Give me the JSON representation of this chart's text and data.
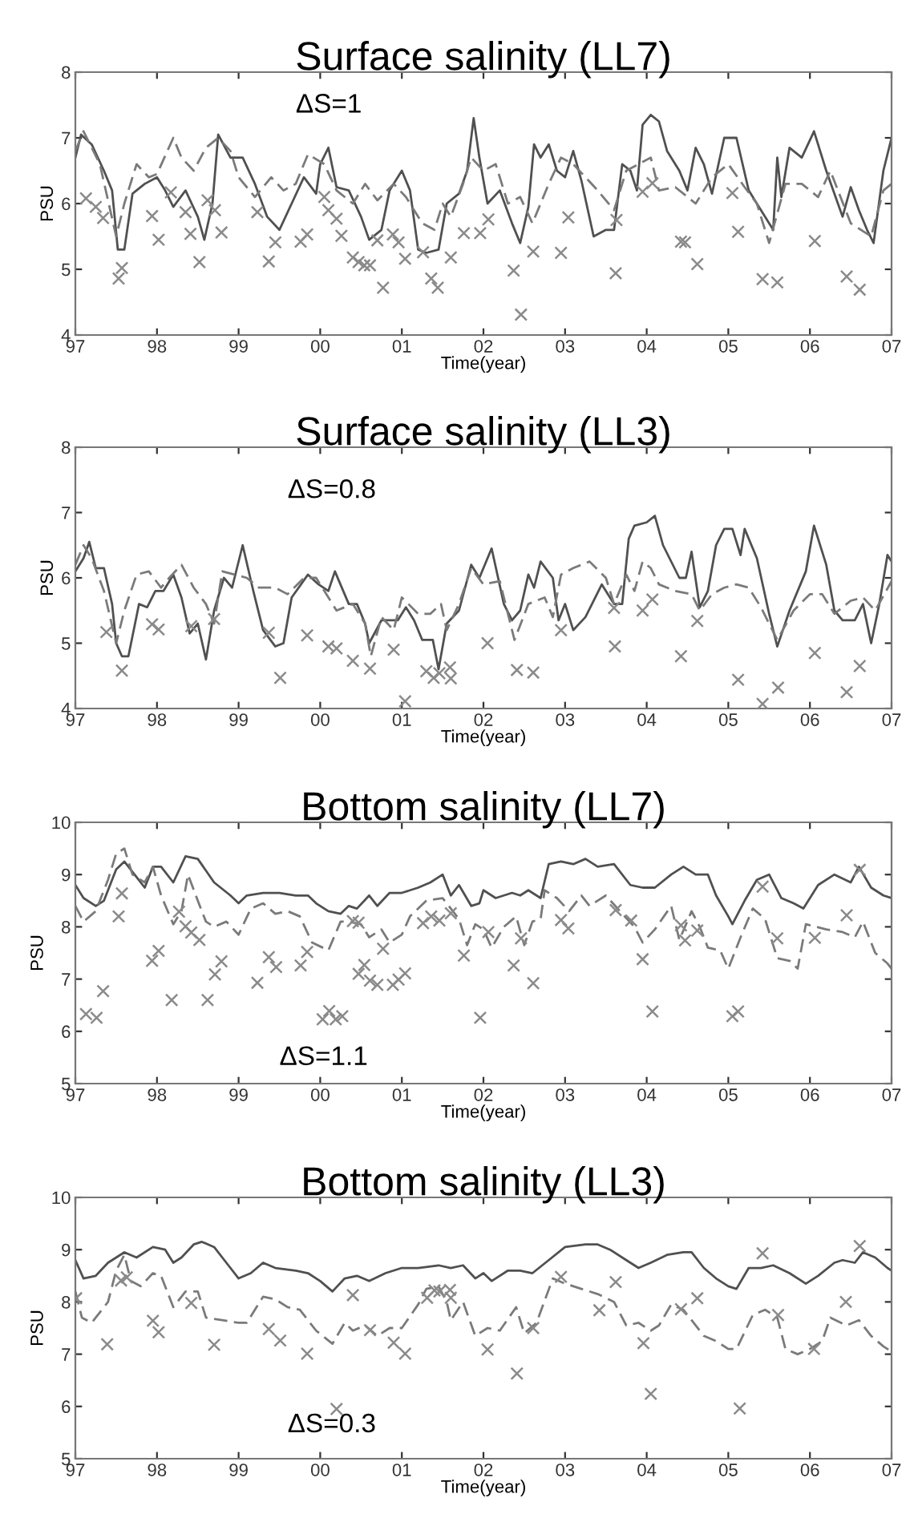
{
  "chart_data": [
    {
      "type": "line",
      "title": "Surface salinity (LL7)",
      "xlabel": "Time(year)",
      "ylabel": "PSU",
      "annotations": [
        "ΔS=1"
      ],
      "xlim": [
        1997,
        2007
      ],
      "ylim": [
        4,
        8
      ],
      "yticks": [
        4,
        5,
        6,
        7,
        8
      ],
      "xticks": [
        {
          "value": 1997,
          "label": "97"
        },
        {
          "value": 1998,
          "label": "98"
        },
        {
          "value": 1999,
          "label": "99"
        },
        {
          "value": 2000,
          "label": "00"
        },
        {
          "value": 2001,
          "label": "01"
        },
        {
          "value": 2002,
          "label": "02"
        },
        {
          "value": 2003,
          "label": "03"
        },
        {
          "value": 2004,
          "label": "04"
        },
        {
          "value": 2005,
          "label": "05"
        },
        {
          "value": 2006,
          "label": "06"
        },
        {
          "value": 2007,
          "label": "07"
        }
      ],
      "grid": false,
      "legend": false,
      "series": [
        {
          "type": "line",
          "line_style": "solid",
          "color": "#505050",
          "x": [
            1997.0,
            1997.07,
            1997.2,
            1997.35,
            1997.45,
            1997.52,
            1997.6,
            1997.7,
            1997.85,
            1998.0,
            1998.1,
            1998.2,
            1998.35,
            1998.5,
            1998.58,
            1998.68,
            1998.75,
            1998.9,
            1999.05,
            1999.2,
            1999.35,
            1999.5,
            1999.65,
            1999.8,
            1999.95,
            2000.0,
            2000.1,
            2000.2,
            2000.35,
            2000.5,
            2000.6,
            2000.75,
            2000.85,
            2001.0,
            2001.1,
            2001.2,
            2001.3,
            2001.45,
            2001.55,
            2001.7,
            2001.8,
            2001.88,
            2001.95,
            2002.05,
            2002.2,
            2002.35,
            2002.45,
            2002.55,
            2002.62,
            2002.7,
            2002.8,
            2002.9,
            2003.0,
            2003.1,
            2003.2,
            2003.35,
            2003.5,
            2003.6,
            2003.7,
            2003.8,
            2003.88,
            2003.95,
            2004.05,
            2004.15,
            2004.25,
            2004.4,
            2004.5,
            2004.6,
            2004.7,
            2004.8,
            2004.95,
            2005.1,
            2005.25,
            2005.35,
            2005.55,
            2005.6,
            2005.65,
            2005.75,
            2005.9,
            2006.05,
            2006.2,
            2006.4,
            2006.5,
            2006.6,
            2006.7,
            2006.78,
            2006.9,
            2007.0
          ],
          "values": [
            6.7,
            7.05,
            6.9,
            6.5,
            6.2,
            5.3,
            5.3,
            6.15,
            6.3,
            6.4,
            6.2,
            5.95,
            6.2,
            5.8,
            5.45,
            6.0,
            7.05,
            6.7,
            6.7,
            6.3,
            5.8,
            5.6,
            6.0,
            6.4,
            6.15,
            6.6,
            6.85,
            6.25,
            6.2,
            5.8,
            5.45,
            5.6,
            6.2,
            6.5,
            6.2,
            5.3,
            5.25,
            5.3,
            6.0,
            6.15,
            6.5,
            7.3,
            6.7,
            6.0,
            6.2,
            5.7,
            5.4,
            5.95,
            6.9,
            6.7,
            6.9,
            6.5,
            6.4,
            6.8,
            6.35,
            5.5,
            5.6,
            5.6,
            6.6,
            6.5,
            6.2,
            7.2,
            7.35,
            7.25,
            6.8,
            6.5,
            6.2,
            6.85,
            6.6,
            6.15,
            7.0,
            7.0,
            6.2,
            6.0,
            5.6,
            6.7,
            6.1,
            6.85,
            6.7,
            7.1,
            6.5,
            5.8,
            6.25,
            5.9,
            5.6,
            5.4,
            6.5,
            7.0
          ]
        },
        {
          "type": "line",
          "line_style": "dashed",
          "color": "#7a7a7a",
          "x": [
            1997.0,
            1997.1,
            1997.3,
            1997.5,
            1997.6,
            1997.75,
            1997.9,
            1998.0,
            1998.2,
            1998.3,
            1998.45,
            1998.6,
            1998.75,
            1998.9,
            1999.0,
            1999.2,
            1999.4,
            1999.55,
            1999.7,
            1999.85,
            2000.05,
            2000.2,
            2000.4,
            2000.55,
            2000.7,
            2000.9,
            2001.05,
            2001.25,
            2001.4,
            2001.5,
            2001.6,
            2001.75,
            2001.85,
            2002.0,
            2002.15,
            2002.3,
            2002.45,
            2002.6,
            2002.8,
            2002.95,
            2003.1,
            2003.25,
            2003.4,
            2003.6,
            2003.75,
            2003.9,
            2004.05,
            2004.15,
            2004.35,
            2004.6,
            2004.8,
            2005.0,
            2005.2,
            2005.35,
            2005.5,
            2005.7,
            2005.9,
            2006.1,
            2006.25,
            2006.5,
            2006.75,
            2006.9,
            2007.0
          ],
          "values": [
            6.8,
            7.1,
            6.6,
            5.5,
            6.0,
            6.6,
            6.4,
            6.45,
            7.0,
            6.7,
            6.5,
            6.85,
            7.0,
            6.8,
            6.4,
            6.1,
            6.4,
            6.2,
            6.3,
            6.75,
            6.6,
            6.2,
            6.0,
            6.3,
            6.05,
            6.3,
            6.1,
            5.7,
            5.6,
            6.0,
            5.8,
            6.3,
            6.7,
            6.5,
            6.6,
            6.0,
            6.1,
            5.7,
            6.3,
            6.7,
            6.6,
            6.4,
            6.2,
            5.9,
            6.5,
            6.6,
            6.7,
            6.2,
            6.25,
            6.0,
            6.4,
            6.6,
            6.25,
            6.0,
            5.4,
            6.3,
            6.3,
            6.1,
            6.5,
            5.7,
            5.5,
            6.2,
            6.3
          ]
        },
        {
          "type": "scatter",
          "marker": "cross",
          "color": "#8a8a8a",
          "x": [
            1997.13,
            1997.25,
            1997.34,
            1997.53,
            1997.57,
            1997.94,
            1998.02,
            1998.17,
            1998.35,
            1998.41,
            1998.52,
            1998.62,
            1998.71,
            1998.79,
            1999.23,
            1999.37,
            1999.45,
            1999.76,
            1999.84,
            2000.05,
            2000.1,
            2000.2,
            2000.26,
            2000.4,
            2000.47,
            2000.54,
            2000.61,
            2000.7,
            2000.77,
            2000.89,
            2000.96,
            2001.04,
            2001.26,
            2001.36,
            2001.44,
            2001.6,
            2001.76,
            2001.96,
            2002.06,
            2002.37,
            2002.46,
            2002.61,
            2002.95,
            2003.04,
            2003.62,
            2003.63,
            2003.95,
            2004.07,
            2004.42,
            2004.47,
            2004.62,
            2005.05,
            2005.12,
            2005.42,
            2005.6,
            2006.06,
            2006.45,
            2006.61
          ],
          "values": [
            6.08,
            5.95,
            5.78,
            4.86,
            5.02,
            5.81,
            5.45,
            6.17,
            5.87,
            5.54,
            5.11,
            6.05,
            5.9,
            5.56,
            5.87,
            5.12,
            5.41,
            5.42,
            5.53,
            6.1,
            5.9,
            5.77,
            5.51,
            5.18,
            5.11,
            5.06,
            5.06,
            5.44,
            4.72,
            5.53,
            5.41,
            5.16,
            5.26,
            4.86,
            4.72,
            5.18,
            5.55,
            5.55,
            5.76,
            4.98,
            4.31,
            5.27,
            5.25,
            5.79,
            4.94,
            5.75,
            6.18,
            6.31,
            5.42,
            5.41,
            5.08,
            6.16,
            5.57,
            4.85,
            4.8,
            5.43,
            4.89,
            4.69
          ]
        }
      ]
    },
    {
      "type": "line",
      "title": "Surface salinity (LL3)",
      "xlabel": "Time(year)",
      "ylabel": "PSU",
      "annotations": [
        "ΔS=0.8"
      ],
      "xlim": [
        1997,
        2007
      ],
      "ylim": [
        4,
        8
      ],
      "yticks": [
        4,
        5,
        6,
        7,
        8
      ],
      "xticks": [
        {
          "value": 1997,
          "label": "97"
        },
        {
          "value": 1998,
          "label": "98"
        },
        {
          "value": 1999,
          "label": "99"
        },
        {
          "value": 2000,
          "label": "00"
        },
        {
          "value": 2001,
          "label": "01"
        },
        {
          "value": 2002,
          "label": "02"
        },
        {
          "value": 2003,
          "label": "03"
        },
        {
          "value": 2004,
          "label": "04"
        },
        {
          "value": 2005,
          "label": "05"
        },
        {
          "value": 2006,
          "label": "06"
        },
        {
          "value": 2007,
          "label": "07"
        }
      ],
      "grid": false,
      "legend": false,
      "series": [
        {
          "type": "line",
          "line_style": "solid",
          "color": "#505050",
          "x": [
            1997.0,
            1997.1,
            1997.17,
            1997.25,
            1997.35,
            1997.45,
            1997.5,
            1997.57,
            1997.65,
            1997.78,
            1997.88,
            1997.98,
            1998.08,
            1998.2,
            1998.3,
            1998.4,
            1998.5,
            1998.6,
            1998.7,
            1998.82,
            1998.92,
            1999.05,
            1999.18,
            1999.3,
            1999.45,
            1999.55,
            1999.65,
            1999.85,
            1999.98,
            2000.1,
            2000.18,
            2000.35,
            2000.45,
            2000.55,
            2000.6,
            2000.75,
            2000.95,
            2001.05,
            2001.15,
            2001.25,
            2001.38,
            2001.45,
            2001.55,
            2001.7,
            2001.85,
            2001.95,
            2002.1,
            2002.25,
            2002.35,
            2002.45,
            2002.55,
            2002.62,
            2002.7,
            2002.85,
            2002.92,
            2003.0,
            2003.1,
            2003.25,
            2003.45,
            2003.6,
            2003.7,
            2003.78,
            2003.85,
            2004.0,
            2004.1,
            2004.2,
            2004.4,
            2004.48,
            2004.55,
            2004.65,
            2004.75,
            2004.85,
            2004.95,
            2005.05,
            2005.15,
            2005.2,
            2005.35,
            2005.5,
            2005.6,
            2005.75,
            2005.95,
            2006.05,
            2006.2,
            2006.3,
            2006.4,
            2006.55,
            2006.65,
            2006.75,
            2006.85,
            2006.95,
            2007.0
          ],
          "values": [
            6.1,
            6.3,
            6.55,
            6.15,
            6.15,
            5.6,
            5.0,
            4.8,
            4.8,
            5.6,
            5.55,
            5.8,
            5.8,
            6.05,
            5.7,
            5.15,
            5.3,
            4.75,
            5.5,
            6.0,
            5.85,
            6.5,
            5.8,
            5.2,
            4.95,
            5.0,
            5.7,
            6.05,
            5.9,
            5.8,
            6.1,
            5.6,
            5.6,
            5.3,
            5.0,
            5.35,
            5.35,
            5.55,
            5.35,
            5.05,
            5.05,
            4.6,
            5.3,
            5.5,
            6.2,
            6.0,
            6.45,
            5.6,
            5.35,
            5.5,
            6.05,
            5.85,
            6.25,
            6.0,
            5.35,
            5.6,
            5.2,
            5.4,
            5.9,
            5.6,
            5.6,
            6.6,
            6.8,
            6.85,
            6.95,
            6.5,
            6.0,
            6.0,
            6.4,
            5.55,
            5.8,
            6.5,
            6.75,
            6.75,
            6.35,
            6.75,
            6.3,
            5.45,
            4.95,
            5.5,
            6.1,
            6.8,
            6.2,
            5.5,
            5.35,
            5.35,
            5.6,
            5.0,
            5.6,
            6.35,
            6.25
          ]
        },
        {
          "type": "line",
          "line_style": "dashed",
          "color": "#7a7a7a",
          "x": [
            1997.0,
            1997.1,
            1997.2,
            1997.35,
            1997.5,
            1997.6,
            1997.75,
            1997.9,
            1998.05,
            1998.15,
            1998.3,
            1998.45,
            1998.6,
            1998.7,
            1998.8,
            1998.95,
            1999.1,
            1999.25,
            1999.45,
            1999.6,
            1999.8,
            1999.95,
            2000.05,
            2000.2,
            2000.4,
            2000.55,
            2000.62,
            2000.75,
            2000.9,
            2001.0,
            2001.2,
            2001.35,
            2001.48,
            2001.55,
            2001.7,
            2001.85,
            2002.0,
            2002.2,
            2002.38,
            2002.55,
            2002.75,
            2002.85,
            2002.95,
            2003.1,
            2003.3,
            2003.5,
            2003.6,
            2003.75,
            2003.85,
            2003.95,
            2004.05,
            2004.15,
            2004.35,
            2004.55,
            2004.65,
            2004.8,
            2004.95,
            2005.1,
            2005.25,
            2005.4,
            2005.6,
            2005.8,
            2006.0,
            2006.15,
            2006.3,
            2006.5,
            2006.65,
            2006.8,
            2007.0
          ],
          "values": [
            6.2,
            6.5,
            6.3,
            5.8,
            5.0,
            5.5,
            6.05,
            6.1,
            5.85,
            6.0,
            6.2,
            5.85,
            5.6,
            5.3,
            6.1,
            6.05,
            6.0,
            5.85,
            5.85,
            5.75,
            6.0,
            6.0,
            5.8,
            5.5,
            5.6,
            5.3,
            4.8,
            5.4,
            5.2,
            5.7,
            5.45,
            5.45,
            5.6,
            5.2,
            5.6,
            6.15,
            5.9,
            5.95,
            5.05,
            5.6,
            5.7,
            5.4,
            6.05,
            6.15,
            6.25,
            6.0,
            5.6,
            6.05,
            5.8,
            6.25,
            6.15,
            5.9,
            5.8,
            5.75,
            5.5,
            5.75,
            5.85,
            5.9,
            5.85,
            5.55,
            5.05,
            5.5,
            5.75,
            5.75,
            5.45,
            5.65,
            5.7,
            5.5,
            5.95
          ]
        },
        {
          "type": "scatter",
          "marker": "cross",
          "color": "#8a8a8a",
          "x": [
            1997.38,
            1997.57,
            1997.94,
            1998.02,
            1998.42,
            1998.7,
            1999.37,
            1999.51,
            1999.84,
            2000.1,
            2000.2,
            2000.4,
            2000.61,
            2000.9,
            2001.04,
            2001.3,
            2001.39,
            2001.46,
            2001.59,
            2001.6,
            2002.05,
            2002.41,
            2002.61,
            2002.95,
            2003.6,
            2003.61,
            2003.95,
            2004.07,
            2004.42,
            2004.62,
            2005.12,
            2005.42,
            2005.61,
            2006.06,
            2006.45,
            2006.61
          ],
          "values": [
            5.17,
            4.58,
            5.29,
            5.21,
            5.26,
            5.37,
            5.16,
            4.47,
            5.12,
            4.95,
            4.92,
            4.73,
            4.61,
            4.9,
            4.11,
            4.57,
            4.47,
            4.54,
            4.63,
            4.46,
            5.0,
            4.59,
            4.55,
            5.2,
            5.54,
            4.95,
            5.5,
            5.67,
            4.8,
            5.34,
            4.44,
            4.07,
            4.32,
            4.85,
            4.25,
            4.65
          ]
        }
      ]
    },
    {
      "type": "line",
      "title": "Bottom salinity (LL7)",
      "xlabel": "Time(year)",
      "ylabel": "PSU",
      "annotations": [
        "ΔS=1.1"
      ],
      "xlim": [
        1997,
        2007
      ],
      "ylim": [
        5,
        10
      ],
      "yticks": [
        5,
        6,
        7,
        8,
        9,
        10
      ],
      "xticks": [
        {
          "value": 1997,
          "label": "97"
        },
        {
          "value": 1998,
          "label": "98"
        },
        {
          "value": 1999,
          "label": "99"
        },
        {
          "value": 2000,
          "label": "00"
        },
        {
          "value": 2001,
          "label": "01"
        },
        {
          "value": 2002,
          "label": "02"
        },
        {
          "value": 2003,
          "label": "03"
        },
        {
          "value": 2004,
          "label": "04"
        },
        {
          "value": 2005,
          "label": "05"
        },
        {
          "value": 2006,
          "label": "06"
        },
        {
          "value": 2007,
          "label": "07"
        }
      ],
      "grid": false,
      "legend": false,
      "series": [
        {
          "type": "line",
          "line_style": "solid",
          "color": "#505050",
          "x": [
            1997.0,
            1997.1,
            1997.25,
            1997.35,
            1997.5,
            1997.6,
            1997.75,
            1997.85,
            1997.95,
            1998.05,
            1998.2,
            1998.35,
            1998.5,
            1998.7,
            1998.9,
            1999.0,
            1999.1,
            1999.3,
            1999.5,
            1999.7,
            1999.85,
            1999.95,
            2000.1,
            2000.25,
            2000.35,
            2000.45,
            2000.6,
            2000.7,
            2000.85,
            2001.0,
            2001.2,
            2001.35,
            2001.5,
            2001.6,
            2001.7,
            2001.85,
            2001.95,
            2002.0,
            2002.15,
            2002.35,
            2002.45,
            2002.55,
            2002.7,
            2002.8,
            2002.95,
            2003.1,
            2003.25,
            2003.4,
            2003.6,
            2003.8,
            2003.95,
            2004.1,
            2004.3,
            2004.45,
            2004.6,
            2004.75,
            2004.85,
            2005.0,
            2005.05,
            2005.2,
            2005.35,
            2005.5,
            2005.65,
            2005.8,
            2005.92,
            2006.1,
            2006.3,
            2006.5,
            2006.6,
            2006.75,
            2006.9,
            2007.0
          ],
          "values": [
            8.8,
            8.55,
            8.4,
            8.5,
            9.1,
            9.25,
            8.95,
            8.75,
            9.15,
            9.15,
            8.85,
            9.35,
            9.3,
            8.85,
            8.6,
            8.45,
            8.6,
            8.65,
            8.65,
            8.6,
            8.6,
            8.45,
            8.3,
            8.25,
            8.4,
            8.35,
            8.6,
            8.4,
            8.65,
            8.65,
            8.75,
            8.85,
            9.0,
            8.6,
            8.8,
            8.4,
            8.45,
            8.7,
            8.55,
            8.65,
            8.6,
            8.7,
            8.55,
            9.2,
            9.25,
            9.2,
            9.3,
            9.15,
            9.2,
            8.8,
            8.75,
            8.75,
            9.0,
            9.15,
            9.0,
            9.0,
            8.6,
            8.2,
            8.05,
            8.5,
            8.9,
            9.0,
            8.55,
            8.45,
            8.35,
            8.8,
            9.0,
            8.85,
            9.15,
            8.75,
            8.6,
            8.55
          ]
        },
        {
          "type": "line",
          "line_style": "dashed",
          "color": "#7a7a7a",
          "x": [
            1997.0,
            1997.1,
            1997.25,
            1997.4,
            1997.5,
            1997.6,
            1997.7,
            1997.85,
            1997.95,
            1998.05,
            1998.2,
            1998.3,
            1998.38,
            1998.5,
            1998.6,
            1998.7,
            1998.85,
            1999.0,
            1999.15,
            1999.3,
            1999.45,
            1999.6,
            1999.75,
            1999.9,
            2000.1,
            2000.25,
            2000.35,
            2000.5,
            2000.6,
            2000.75,
            2000.85,
            2001.0,
            2001.1,
            2001.3,
            2001.5,
            2001.6,
            2001.7,
            2001.8,
            2001.9,
            2002.0,
            2002.1,
            2002.25,
            2002.4,
            2002.5,
            2002.6,
            2002.7,
            2002.75,
            2002.9,
            2003.05,
            2003.2,
            2003.3,
            2003.5,
            2003.7,
            2003.85,
            2003.95,
            2004.1,
            2004.3,
            2004.4,
            2004.55,
            2004.65,
            2004.75,
            2004.9,
            2005.0,
            2005.15,
            2005.3,
            2005.45,
            2005.6,
            2005.75,
            2005.85,
            2005.95,
            2006.2,
            2006.4,
            2006.55,
            2006.65,
            2006.8,
            2006.95,
            2007.0
          ],
          "values": [
            8.4,
            8.1,
            8.3,
            8.9,
            9.4,
            9.5,
            9.0,
            8.85,
            9.15,
            8.6,
            8.05,
            8.3,
            9.0,
            8.5,
            8.1,
            8.0,
            8.1,
            7.85,
            8.35,
            8.45,
            8.25,
            8.3,
            8.2,
            7.7,
            7.55,
            8.1,
            8.1,
            8.05,
            7.8,
            7.95,
            7.7,
            7.85,
            8.2,
            8.5,
            8.55,
            8.35,
            8.15,
            7.65,
            8.05,
            7.95,
            7.6,
            8.0,
            8.2,
            7.65,
            8.1,
            8.15,
            8.7,
            8.55,
            8.3,
            8.6,
            8.4,
            8.6,
            8.25,
            8.0,
            7.7,
            7.95,
            8.4,
            7.75,
            8.3,
            8.0,
            7.6,
            7.55,
            7.2,
            7.8,
            8.35,
            8.15,
            7.4,
            7.35,
            7.2,
            8.05,
            7.95,
            7.9,
            7.8,
            8.1,
            7.5,
            7.3,
            7.2
          ]
        },
        {
          "type": "scatter",
          "marker": "cross",
          "color": "#8a8a8a",
          "x": [
            1997.13,
            1997.26,
            1997.34,
            1997.53,
            1997.57,
            1997.94,
            1998.02,
            1998.18,
            1998.27,
            1998.35,
            1998.42,
            1998.52,
            1998.62,
            1998.71,
            1998.79,
            1999.23,
            1999.37,
            1999.46,
            1999.76,
            1999.84,
            2000.03,
            2000.11,
            2000.19,
            2000.27,
            2000.4,
            2000.47,
            2000.47,
            2000.54,
            2000.61,
            2000.7,
            2000.77,
            2000.89,
            2000.96,
            2001.04,
            2001.26,
            2001.36,
            2001.46,
            2001.6,
            2001.76,
            2001.96,
            2002.06,
            2002.37,
            2002.46,
            2002.61,
            2002.95,
            2003.04,
            2003.62,
            2003.81,
            2003.95,
            2004.07,
            2004.42,
            2004.47,
            2004.62,
            2005.05,
            2005.12,
            2005.42,
            2005.6,
            2006.06,
            2006.45,
            2006.61
          ],
          "values": [
            6.33,
            6.26,
            6.77,
            8.2,
            8.64,
            7.35,
            7.54,
            6.6,
            8.29,
            8.01,
            7.89,
            7.75,
            6.6,
            7.09,
            7.34,
            6.93,
            7.42,
            7.23,
            7.26,
            7.52,
            6.23,
            6.39,
            6.23,
            6.29,
            8.11,
            8.08,
            7.1,
            7.27,
            6.97,
            6.89,
            7.58,
            6.89,
            6.99,
            7.11,
            8.07,
            8.2,
            8.12,
            8.26,
            7.45,
            6.26,
            7.9,
            7.26,
            7.78,
            6.92,
            8.13,
            7.97,
            8.32,
            8.12,
            7.38,
            6.38,
            8.03,
            7.74,
            7.93,
            6.29,
            6.38,
            8.77,
            7.78,
            7.79,
            8.22,
            9.09
          ]
        }
      ]
    },
    {
      "type": "line",
      "title": "Bottom salinity (LL3)",
      "xlabel": "Time(year)",
      "ylabel": "PSU",
      "annotations": [
        "ΔS=0.3"
      ],
      "xlim": [
        1997,
        2007
      ],
      "ylim": [
        5,
        10
      ],
      "yticks": [
        5,
        6,
        7,
        8,
        9,
        10
      ],
      "xticks": [
        {
          "value": 1997,
          "label": "97"
        },
        {
          "value": 1998,
          "label": "98"
        },
        {
          "value": 1999,
          "label": "99"
        },
        {
          "value": 2000,
          "label": "00"
        },
        {
          "value": 2001,
          "label": "01"
        },
        {
          "value": 2002,
          "label": "02"
        },
        {
          "value": 2003,
          "label": "03"
        },
        {
          "value": 2004,
          "label": "04"
        },
        {
          "value": 2005,
          "label": "05"
        },
        {
          "value": 2006,
          "label": "06"
        },
        {
          "value": 2007,
          "label": "07"
        }
      ],
      "grid": false,
      "legend": false,
      "series": [
        {
          "type": "line",
          "line_style": "solid",
          "color": "#505050",
          "x": [
            1997.0,
            1997.1,
            1997.25,
            1997.4,
            1997.6,
            1997.75,
            1997.95,
            1998.1,
            1998.2,
            1998.3,
            1998.45,
            1998.55,
            1998.7,
            1998.85,
            1999.0,
            1999.15,
            1999.3,
            1999.45,
            1999.7,
            1999.85,
            2000.0,
            2000.15,
            2000.3,
            2000.45,
            2000.6,
            2000.8,
            2001.0,
            2001.2,
            2001.45,
            2001.6,
            2001.75,
            2001.9,
            2002.0,
            2002.1,
            2002.3,
            2002.45,
            2002.6,
            2002.8,
            2003.0,
            2003.25,
            2003.4,
            2003.55,
            2003.75,
            2003.9,
            2004.05,
            2004.25,
            2004.45,
            2004.55,
            2004.7,
            2004.85,
            2005.0,
            2005.1,
            2005.25,
            2005.4,
            2005.55,
            2005.75,
            2005.95,
            2006.1,
            2006.3,
            2006.4,
            2006.55,
            2006.65,
            2006.8,
            2006.95,
            2007.0
          ],
          "values": [
            8.8,
            8.45,
            8.5,
            8.75,
            8.95,
            8.85,
            9.05,
            9.0,
            8.75,
            8.85,
            9.1,
            9.15,
            9.05,
            8.75,
            8.45,
            8.55,
            8.75,
            8.65,
            8.6,
            8.55,
            8.4,
            8.2,
            8.45,
            8.5,
            8.4,
            8.55,
            8.65,
            8.65,
            8.7,
            8.65,
            8.7,
            8.45,
            8.55,
            8.4,
            8.6,
            8.6,
            8.55,
            8.8,
            9.05,
            9.1,
            9.1,
            9.0,
            8.8,
            8.65,
            8.75,
            8.9,
            8.95,
            8.95,
            8.65,
            8.45,
            8.3,
            8.25,
            8.65,
            8.65,
            8.7,
            8.55,
            8.35,
            8.5,
            8.75,
            8.8,
            8.75,
            8.95,
            8.85,
            8.65,
            8.6
          ]
        },
        {
          "type": "line",
          "line_style": "dashed",
          "color": "#7a7a7a",
          "x": [
            1997.0,
            1997.08,
            1997.2,
            1997.4,
            1997.5,
            1997.6,
            1997.68,
            1997.8,
            1997.95,
            1998.05,
            1998.2,
            1998.35,
            1998.5,
            1998.6,
            1998.8,
            1999.0,
            1999.1,
            1999.3,
            1999.45,
            1999.6,
            1999.75,
            1999.95,
            2000.15,
            2000.3,
            2000.4,
            2000.55,
            2000.7,
            2000.85,
            2001.0,
            2001.2,
            2001.3,
            2001.45,
            2001.55,
            2001.6,
            2001.75,
            2001.9,
            2002.05,
            2002.2,
            2002.4,
            2002.5,
            2002.65,
            2002.85,
            2003.0,
            2003.2,
            2003.4,
            2003.6,
            2003.75,
            2003.9,
            2004.05,
            2004.15,
            2004.3,
            2004.45,
            2004.55,
            2004.7,
            2004.85,
            2005.0,
            2005.1,
            2005.3,
            2005.45,
            2005.6,
            2005.7,
            2005.85,
            2006.0,
            2006.15,
            2006.25,
            2006.45,
            2006.6,
            2006.75,
            2006.9,
            2007.0
          ],
          "values": [
            8.2,
            7.7,
            7.6,
            8.0,
            8.6,
            8.9,
            8.4,
            8.3,
            8.55,
            8.5,
            7.9,
            8.2,
            8.2,
            7.7,
            7.65,
            7.6,
            7.6,
            8.1,
            8.05,
            7.9,
            7.85,
            7.45,
            7.2,
            7.6,
            7.45,
            7.55,
            7.35,
            7.5,
            7.5,
            7.95,
            8.25,
            8.3,
            8.0,
            7.65,
            8.0,
            7.35,
            7.5,
            7.45,
            7.9,
            7.4,
            7.6,
            8.45,
            8.35,
            8.25,
            8.15,
            8.0,
            7.55,
            7.6,
            7.45,
            7.55,
            7.95,
            7.85,
            7.65,
            7.35,
            7.25,
            7.1,
            7.1,
            7.75,
            7.85,
            7.7,
            7.1,
            7.0,
            7.1,
            7.25,
            7.7,
            7.55,
            7.65,
            7.35,
            7.15,
            7.05
          ]
        },
        {
          "type": "scatter",
          "marker": "cross",
          "color": "#8a8a8a",
          "x": [
            1997.01,
            1997.39,
            1997.56,
            1997.63,
            1997.95,
            1998.02,
            1998.42,
            1998.7,
            1999.37,
            1999.51,
            1999.84,
            2000.2,
            2000.4,
            2000.61,
            2000.9,
            2001.04,
            2001.31,
            2001.4,
            2001.46,
            2001.59,
            2001.6,
            2002.05,
            2002.41,
            2002.61,
            2002.95,
            2003.42,
            2003.62,
            2003.96,
            2004.05,
            2004.42,
            2004.62,
            2005.14,
            2005.42,
            2005.61,
            2006.05,
            2006.44,
            2006.61
          ],
          "values": [
            8.07,
            7.19,
            8.41,
            8.47,
            7.64,
            7.42,
            7.98,
            7.18,
            7.48,
            7.26,
            7.01,
            5.95,
            8.13,
            7.46,
            7.22,
            7.01,
            8.08,
            8.22,
            8.2,
            8.23,
            8.08,
            7.09,
            6.63,
            7.5,
            8.48,
            7.84,
            8.38,
            7.21,
            6.24,
            7.86,
            8.07,
            5.96,
            8.93,
            7.75,
            7.1,
            8.0,
            9.07
          ]
        }
      ]
    }
  ]
}
